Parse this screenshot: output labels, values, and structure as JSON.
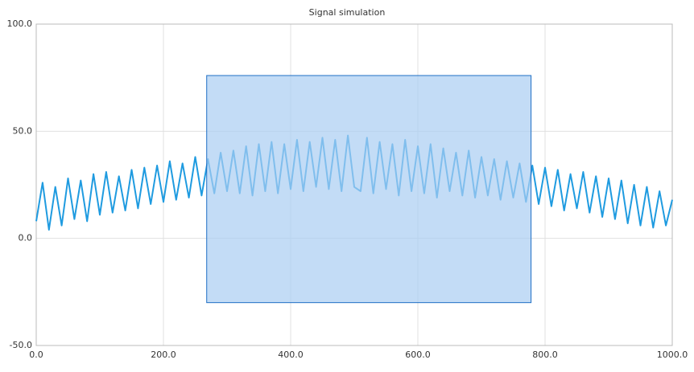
{
  "chart_data": {
    "type": "line",
    "title": "Signal simulation",
    "x": [
      0,
      10,
      20,
      30,
      40,
      50,
      60,
      70,
      80,
      90,
      100,
      110,
      120,
      130,
      140,
      150,
      160,
      170,
      180,
      190,
      200,
      210,
      220,
      230,
      240,
      250,
      260,
      270,
      280,
      290,
      300,
      310,
      320,
      330,
      340,
      350,
      360,
      370,
      380,
      390,
      400,
      410,
      420,
      430,
      440,
      450,
      460,
      470,
      480,
      490,
      500,
      510,
      520,
      530,
      540,
      550,
      560,
      570,
      580,
      590,
      600,
      610,
      620,
      630,
      640,
      650,
      660,
      670,
      680,
      690,
      700,
      710,
      720,
      730,
      740,
      750,
      760,
      770,
      780,
      790,
      800,
      810,
      820,
      830,
      840,
      850,
      860,
      870,
      880,
      890,
      900,
      910,
      920,
      930,
      940,
      950,
      960,
      970,
      980,
      990,
      1000
    ],
    "series": [
      {
        "color": "#1f9be0",
        "values": [
          8,
          26,
          4,
          24,
          6,
          28,
          9,
          27,
          8,
          30,
          11,
          31,
          12,
          29,
          13,
          32,
          14,
          33,
          16,
          34,
          17,
          36,
          18,
          35,
          19,
          38,
          20,
          37,
          21,
          40,
          22,
          41,
          21,
          43,
          20,
          44,
          22,
          45,
          21,
          44,
          23,
          46,
          22,
          45,
          24,
          47,
          23,
          46,
          22,
          48,
          24,
          22,
          47,
          21,
          45,
          23,
          44,
          20,
          46,
          22,
          43,
          21,
          44,
          19,
          42,
          22,
          40,
          20,
          41,
          19,
          38,
          20,
          37,
          18,
          36,
          19,
          35,
          17,
          34,
          16,
          33,
          15,
          32,
          13,
          30,
          14,
          31,
          12,
          29,
          10,
          28,
          9,
          27,
          7,
          25,
          6,
          24,
          5,
          22,
          6,
          18
        ]
      }
    ],
    "selection": {
      "x": [
        268,
        778
      ],
      "y": [
        -30,
        76
      ]
    },
    "xlim": [
      0,
      1000
    ],
    "xticks": [
      {
        "value": 0,
        "label": "0.0"
      },
      {
        "value": 200,
        "label": "200.0"
      },
      {
        "value": 400,
        "label": "400.0"
      },
      {
        "value": 600,
        "label": "600.0"
      },
      {
        "value": 800,
        "label": "800.0"
      },
      {
        "value": 1000,
        "label": "1000.0"
      }
    ],
    "ylim": [
      -50,
      100
    ],
    "yticks": [
      {
        "value": -50,
        "label": "-50.0"
      },
      {
        "value": 0,
        "label": "0.0"
      },
      {
        "value": 50,
        "label": "50.0"
      },
      {
        "value": 100,
        "label": "100.0"
      }
    ],
    "grid": true
  }
}
